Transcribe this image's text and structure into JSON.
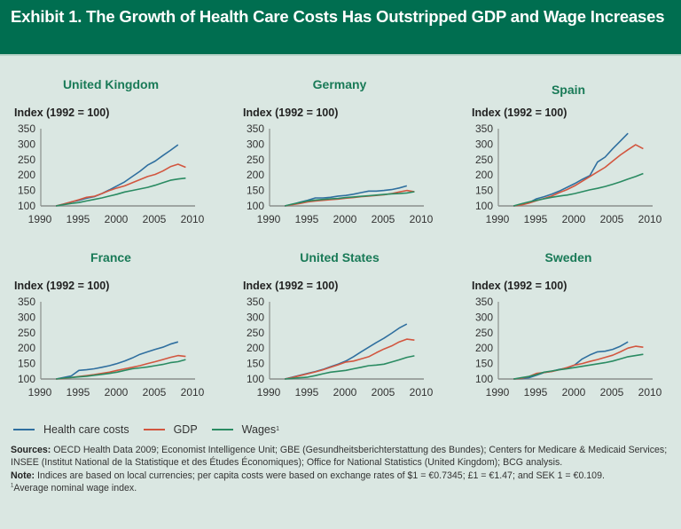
{
  "header": {
    "title": "Exhibit 1. The Growth of Health Care Costs Has Outstripped GDP and Wage Increases"
  },
  "colors": {
    "header_bg": "#006e50",
    "panel_title": "#197a57",
    "health": "#2f6f9f",
    "gdp": "#d2563f",
    "wages": "#2a8b62"
  },
  "legend": {
    "items": [
      {
        "label": "Health care costs",
        "color_key": "health"
      },
      {
        "label": "GDP",
        "color_key": "gdp"
      },
      {
        "label": "Wages",
        "color_key": "wages",
        "superscript": "1"
      }
    ]
  },
  "chart_data": [
    {
      "type": "line",
      "title": "United Kingdom",
      "ylabel_bold": "Index ",
      "ylabel_main": "(1992 = 100)",
      "xlim": [
        1990,
        2010
      ],
      "ylim": [
        100,
        350
      ],
      "xticks": [
        1990,
        1995,
        2000,
        2005,
        2010
      ],
      "yticks": [
        100,
        150,
        200,
        250,
        300,
        350
      ],
      "x": [
        1992,
        1993,
        1994,
        1995,
        1996,
        1997,
        1998,
        1999,
        2000,
        2001,
        2002,
        2003,
        2004,
        2005,
        2006,
        2007,
        2008,
        2009
      ],
      "series": [
        {
          "name": "Health care costs",
          "values": [
            100,
            106,
            113,
            118,
            125,
            130,
            140,
            152,
            165,
            178,
            195,
            212,
            232,
            245,
            263,
            280,
            298,
            null
          ]
        },
        {
          "name": "GDP",
          "values": [
            100,
            106,
            113,
            120,
            128,
            131,
            140,
            150,
            158,
            165,
            175,
            185,
            195,
            202,
            213,
            227,
            235,
            225
          ]
        },
        {
          "name": "Wages",
          "values": [
            100,
            104,
            108,
            111,
            116,
            121,
            126,
            132,
            138,
            145,
            150,
            155,
            160,
            167,
            175,
            183,
            187,
            190
          ]
        }
      ]
    },
    {
      "type": "line",
      "title": "Germany",
      "ylabel_bold": "Index ",
      "ylabel_main": "(1992 = 100)",
      "xlim": [
        1990,
        2010
      ],
      "ylim": [
        100,
        350
      ],
      "xticks": [
        1990,
        1995,
        2000,
        2005,
        2010
      ],
      "yticks": [
        100,
        150,
        200,
        250,
        300,
        350
      ],
      "x": [
        1992,
        1993,
        1994,
        1995,
        1996,
        1997,
        1998,
        1999,
        2000,
        2001,
        2002,
        2003,
        2004,
        2005,
        2006,
        2007,
        2008,
        2009
      ],
      "series": [
        {
          "name": "Health care costs",
          "values": [
            100,
            105,
            112,
            118,
            126,
            126,
            128,
            132,
            134,
            138,
            143,
            148,
            148,
            150,
            153,
            158,
            165,
            null
          ]
        },
        {
          "name": "GDP",
          "values": [
            100,
            104,
            108,
            113,
            116,
            118,
            120,
            122,
            125,
            127,
            130,
            132,
            134,
            136,
            140,
            145,
            150,
            146
          ]
        },
        {
          "name": "Wages",
          "values": [
            100,
            106,
            111,
            116,
            119,
            121,
            123,
            124,
            127,
            129,
            131,
            133,
            135,
            137,
            139,
            140,
            142,
            146
          ]
        }
      ]
    },
    {
      "type": "line",
      "title": "Spain",
      "ylabel_bold": "Index ",
      "ylabel_main": "(1992 = 100)",
      "xlim": [
        1990,
        2010
      ],
      "ylim": [
        100,
        350
      ],
      "xticks": [
        1990,
        1995,
        2000,
        2005,
        2010
      ],
      "yticks": [
        100,
        150,
        200,
        250,
        300,
        350
      ],
      "x": [
        1992,
        1993,
        1994,
        1995,
        1996,
        1997,
        1998,
        1999,
        2000,
        2001,
        2002,
        2003,
        2004,
        2005,
        2006,
        2007,
        2008,
        2009
      ],
      "series": [
        {
          "name": "Health care costs",
          "values": [
            100,
            104,
            110,
            123,
            130,
            138,
            148,
            160,
            172,
            186,
            198,
            242,
            258,
            285,
            310,
            335,
            null,
            null
          ]
        },
        {
          "name": "GDP",
          "values": [
            100,
            103,
            109,
            117,
            124,
            132,
            143,
            153,
            165,
            180,
            195,
            210,
            225,
            245,
            265,
            282,
            298,
            285
          ]
        },
        {
          "name": "Wages",
          "values": [
            100,
            107,
            113,
            118,
            123,
            128,
            132,
            135,
            140,
            146,
            152,
            157,
            163,
            170,
            178,
            187,
            195,
            205
          ]
        }
      ]
    },
    {
      "type": "line",
      "title": "France",
      "ylabel_bold": "Index ",
      "ylabel_main": "(1992 = 100)",
      "xlim": [
        1990,
        2010
      ],
      "ylim": [
        100,
        350
      ],
      "xticks": [
        1990,
        1995,
        2000,
        2005,
        2010
      ],
      "yticks": [
        100,
        150,
        200,
        250,
        300,
        350
      ],
      "x": [
        1992,
        1993,
        1994,
        1995,
        1996,
        1997,
        1998,
        1999,
        2000,
        2001,
        2002,
        2003,
        2004,
        2005,
        2006,
        2007,
        2008,
        2009
      ],
      "series": [
        {
          "name": "Health care costs",
          "values": [
            100,
            105,
            110,
            128,
            130,
            133,
            138,
            143,
            150,
            158,
            168,
            180,
            188,
            196,
            203,
            213,
            220,
            null
          ]
        },
        {
          "name": "GDP",
          "values": [
            100,
            102,
            105,
            108,
            111,
            114,
            118,
            122,
            128,
            133,
            138,
            143,
            150,
            156,
            163,
            170,
            176,
            173
          ]
        },
        {
          "name": "Wages",
          "values": [
            100,
            103,
            105,
            107,
            109,
            112,
            115,
            118,
            122,
            128,
            133,
            136,
            139,
            143,
            147,
            153,
            156,
            163
          ]
        }
      ]
    },
    {
      "type": "line",
      "title": "United States",
      "ylabel_bold": "Index ",
      "ylabel_main": "(1992 = 100)",
      "xlim": [
        1990,
        2010
      ],
      "ylim": [
        100,
        350
      ],
      "xticks": [
        1990,
        1995,
        2000,
        2005,
        2010
      ],
      "yticks": [
        100,
        150,
        200,
        250,
        300,
        350
      ],
      "x": [
        1992,
        1993,
        1994,
        1995,
        1996,
        1997,
        1998,
        1999,
        2000,
        2001,
        2002,
        2003,
        2004,
        2005,
        2006,
        2007,
        2008,
        2009
      ],
      "series": [
        {
          "name": "Health care costs",
          "values": [
            100,
            106,
            112,
            118,
            124,
            131,
            140,
            148,
            158,
            172,
            188,
            203,
            218,
            232,
            248,
            265,
            278,
            null
          ]
        },
        {
          "name": "GDP",
          "values": [
            100,
            105,
            111,
            117,
            123,
            130,
            138,
            146,
            155,
            158,
            165,
            172,
            185,
            197,
            207,
            220,
            229,
            226
          ]
        },
        {
          "name": "Wages",
          "values": [
            100,
            102,
            104,
            106,
            111,
            117,
            122,
            125,
            128,
            133,
            138,
            143,
            145,
            148,
            155,
            162,
            170,
            175
          ]
        }
      ]
    },
    {
      "type": "line",
      "title": "Sweden",
      "ylabel_bold": "Index ",
      "ylabel_main": "(1992 = 100)",
      "xlim": [
        1990,
        2010
      ],
      "ylim": [
        100,
        350
      ],
      "xticks": [
        1990,
        1995,
        2000,
        2005,
        2010
      ],
      "yticks": [
        100,
        150,
        200,
        250,
        300,
        350
      ],
      "x": [
        1992,
        1993,
        1994,
        1995,
        1996,
        1997,
        1998,
        1999,
        2000,
        2001,
        2002,
        2003,
        2004,
        2005,
        2006,
        2007,
        2008,
        2009
      ],
      "series": [
        {
          "name": "Health care costs",
          "values": [
            100,
            101,
            104,
            112,
            121,
            125,
            131,
            135,
            145,
            165,
            178,
            188,
            190,
            196,
            206,
            220,
            null,
            null
          ]
        },
        {
          "name": "GDP",
          "values": [
            100,
            102,
            108,
            118,
            121,
            124,
            130,
            137,
            145,
            150,
            157,
            163,
            170,
            177,
            188,
            200,
            206,
            203
          ]
        },
        {
          "name": "Wages",
          "values": [
            100,
            104,
            108,
            114,
            122,
            126,
            130,
            133,
            137,
            141,
            145,
            149,
            153,
            158,
            165,
            172,
            176,
            180
          ]
        }
      ]
    }
  ],
  "notes": {
    "sources_label": "Sources:",
    "sources_text": " OECD Health Data 2009; Economist Intelligence Unit; GBE (Gesundheitsberichterstattung des Bundes); Centers for Medicare & Medicaid Services; INSEE (Institut National de la Statistique et des Études Économiques); Office for National Statistics (United Kingdom); BCG analysis.",
    "note_label": "Note:",
    "note_text": " Indices are based on local currencies; per capita costs were based on exchange rates of $1 = €0.7345; £1 = €1.47; and SEK 1 = €0.109.",
    "footnote_marker": "1",
    "footnote_text": "Average nominal wage index."
  }
}
